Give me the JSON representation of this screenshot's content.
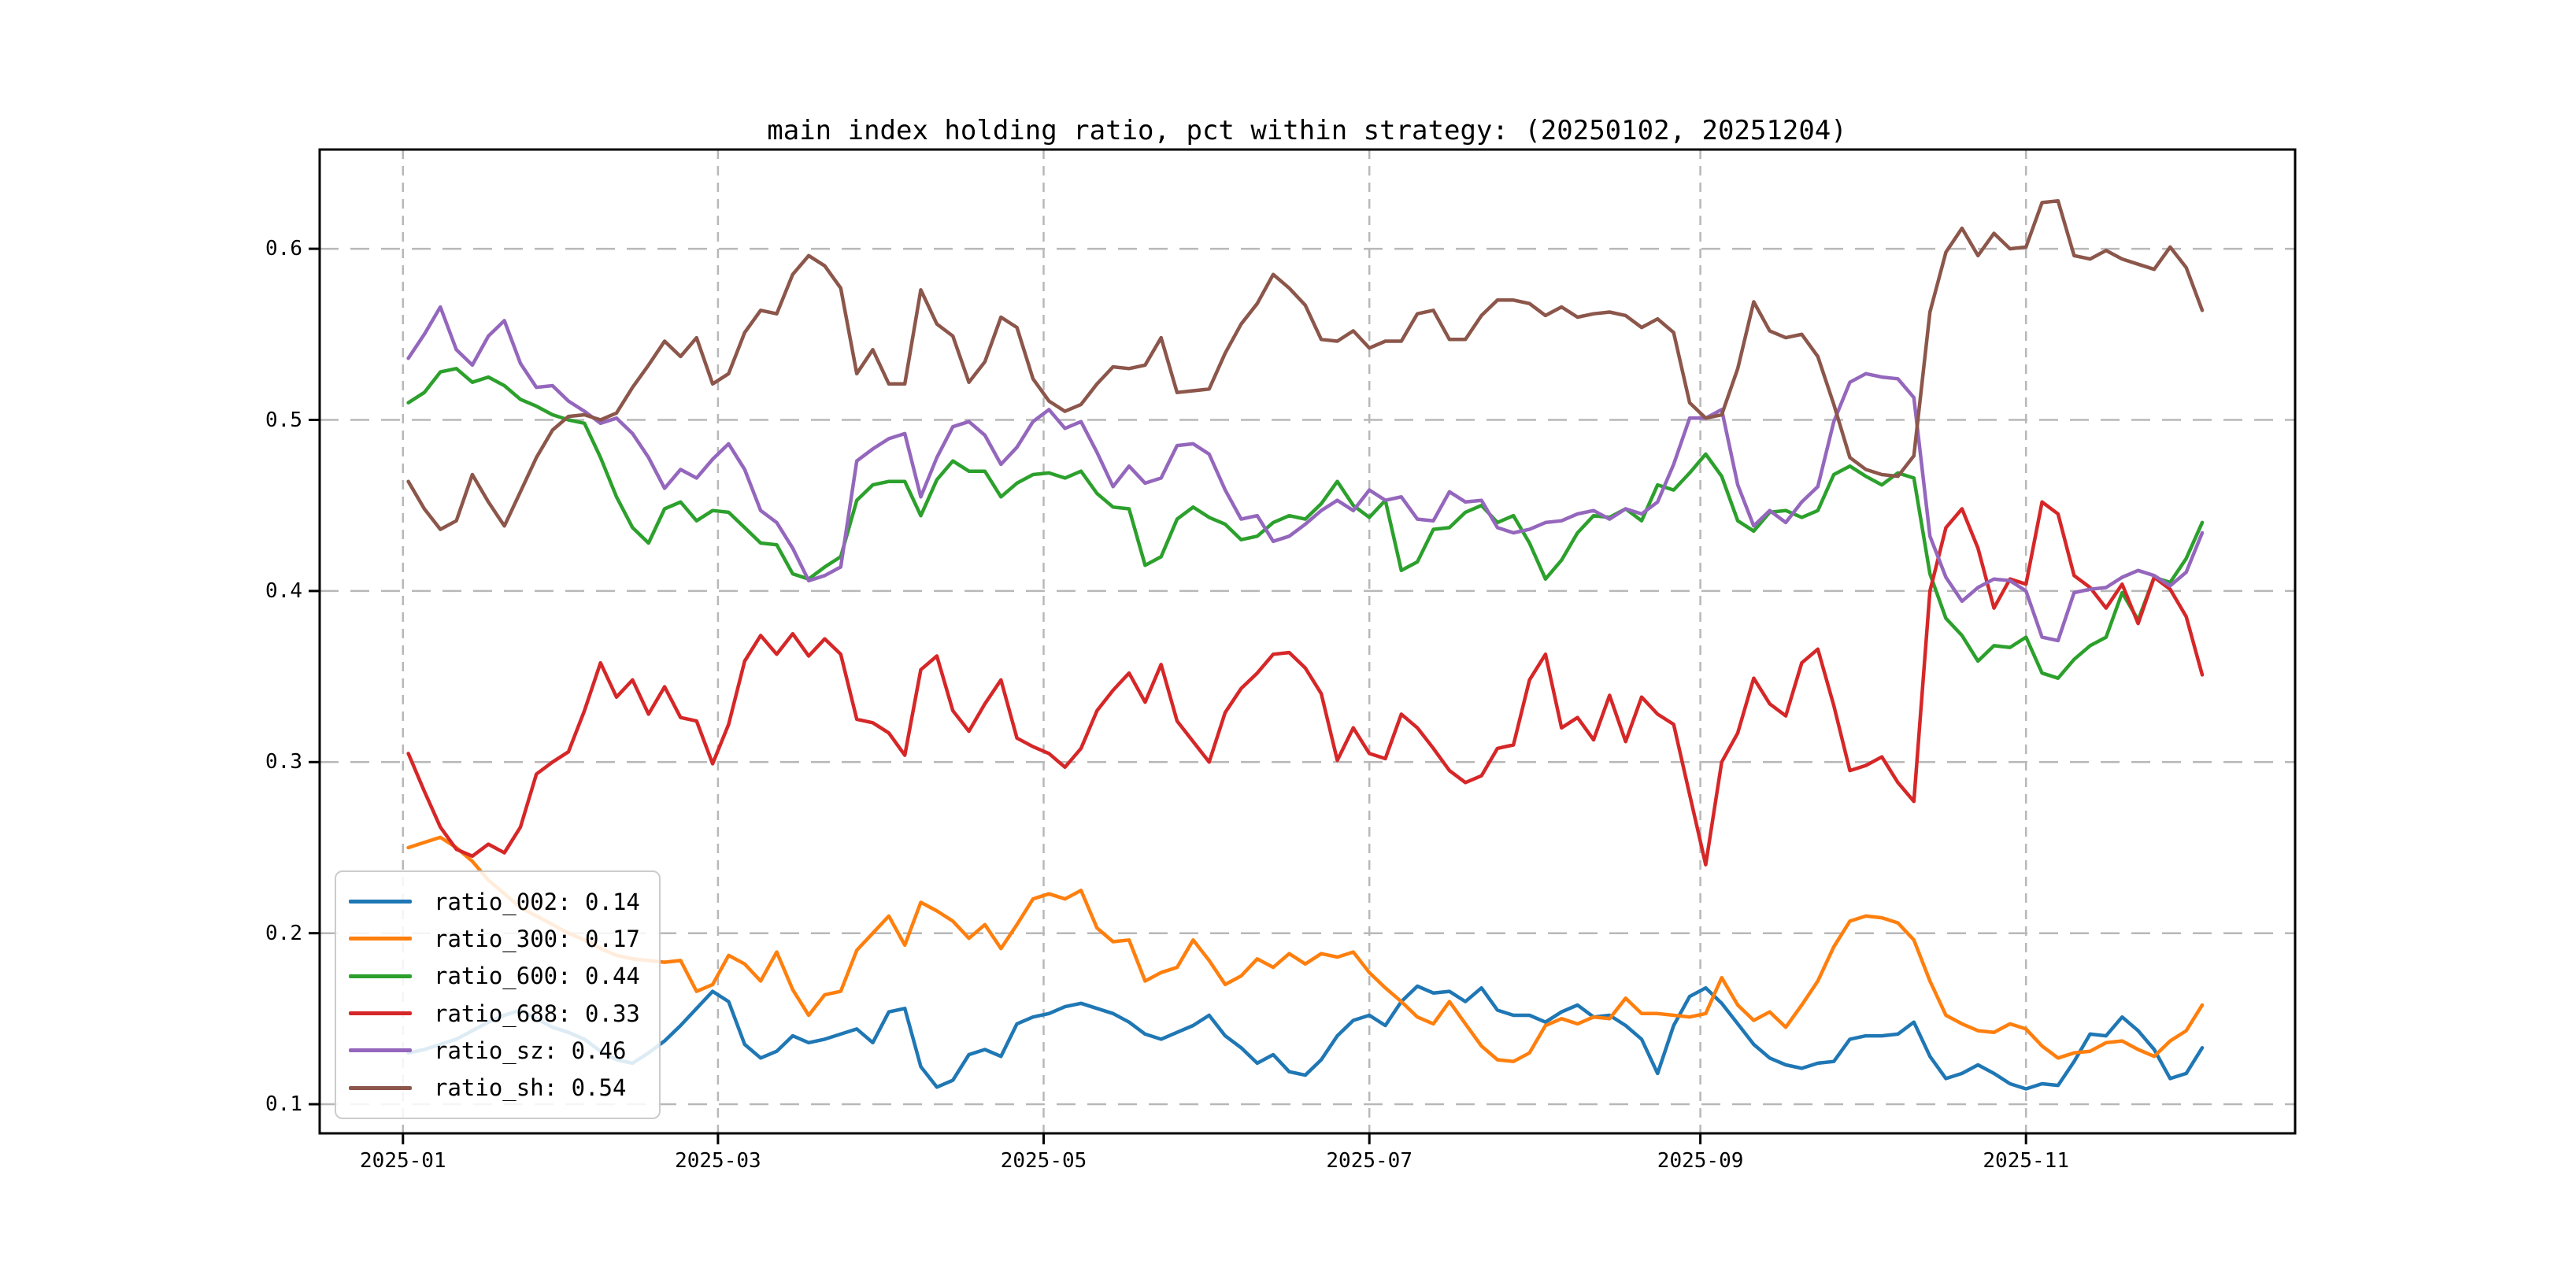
{
  "title": "main index holding ratio, pct within strategy: (20250102, 20251204)",
  "legend": {
    "entries": [
      {
        "label": "ratio_002: 0.14"
      },
      {
        "label": "ratio_300: 0.17"
      },
      {
        "label": "ratio_600: 0.44"
      },
      {
        "label": "ratio_688: 0.33"
      },
      {
        "label": "ratio_sz: 0.46"
      },
      {
        "label": "ratio_sh: 0.54"
      }
    ]
  },
  "axes": {
    "x_tick_labels": [
      "2025-01",
      "2025-03",
      "2025-05",
      "2025-07",
      "2025-09",
      "2025-11"
    ],
    "x_tick_days": [
      -1,
      58,
      119,
      180,
      242,
      303
    ],
    "y_tick_labels": [
      "0.1",
      "0.2",
      "0.3",
      "0.4",
      "0.5",
      "0.6"
    ],
    "y_tick_values": [
      0.1,
      0.2,
      0.3,
      0.4,
      0.5,
      0.6
    ],
    "ylim": [
      0.083,
      0.658
    ],
    "xlim_days": [
      -16.6,
      353.4
    ],
    "grid_color": "#b8b8b8",
    "spine_color": "#000000"
  },
  "chart_data": {
    "type": "line",
    "title": "main index holding ratio, pct within strategy: (20250102, 20251204)",
    "date_range": [
      "20250102",
      "20251204"
    ],
    "x_unit": "days since 2025-01-02",
    "grid": true,
    "legend_position": "lower left",
    "x_days": [
      0,
      3,
      6,
      9,
      12,
      15,
      18,
      21,
      24,
      27,
      30,
      33,
      36,
      39,
      42,
      45,
      48,
      51,
      54,
      57,
      60,
      63,
      66,
      69,
      72,
      75,
      78,
      81,
      84,
      87,
      90,
      93,
      96,
      99,
      102,
      105,
      108,
      111,
      114,
      117,
      120,
      123,
      126,
      129,
      132,
      135,
      138,
      141,
      144,
      147,
      150,
      153,
      156,
      159,
      162,
      165,
      168,
      171,
      174,
      177,
      180,
      183,
      186,
      189,
      192,
      195,
      198,
      201,
      204,
      207,
      210,
      213,
      216,
      219,
      222,
      225,
      228,
      231,
      234,
      237,
      240,
      243,
      246,
      249,
      252,
      255,
      258,
      261,
      264,
      267,
      270,
      273,
      276,
      279,
      282,
      285,
      288,
      291,
      294,
      297,
      300,
      303,
      306,
      309,
      312,
      315,
      318,
      321,
      324,
      327,
      330,
      333,
      336
    ],
    "series": [
      {
        "name": "ratio_002",
        "color": "#1f77b4",
        "last_label": "0.14",
        "values": [
          0.13,
          0.132,
          0.135,
          0.138,
          0.143,
          0.148,
          0.152,
          0.155,
          0.15,
          0.145,
          0.142,
          0.138,
          0.131,
          0.126,
          0.124,
          0.13,
          0.137,
          0.146,
          0.156,
          0.166,
          0.16,
          0.135,
          0.127,
          0.131,
          0.14,
          0.136,
          0.138,
          0.141,
          0.144,
          0.136,
          0.154,
          0.156,
          0.122,
          0.11,
          0.114,
          0.129,
          0.132,
          0.128,
          0.147,
          0.151,
          0.153,
          0.157,
          0.159,
          0.156,
          0.153,
          0.148,
          0.141,
          0.138,
          0.142,
          0.146,
          0.152,
          0.14,
          0.133,
          0.124,
          0.129,
          0.119,
          0.117,
          0.126,
          0.14,
          0.149,
          0.152,
          0.146,
          0.16,
          0.169,
          0.165,
          0.166,
          0.16,
          0.168,
          0.155,
          0.152,
          0.152,
          0.148,
          0.154,
          0.158,
          0.151,
          0.152,
          0.146,
          0.138,
          0.118,
          0.146,
          0.163,
          0.168,
          0.159,
          0.147,
          0.135,
          0.127,
          0.123,
          0.121,
          0.124,
          0.125,
          0.138,
          0.14,
          0.14,
          0.141,
          0.148,
          0.128,
          0.115,
          0.118,
          0.123,
          0.118,
          0.112,
          0.109,
          0.112,
          0.111,
          0.125,
          0.141,
          0.14,
          0.151,
          0.143,
          0.132,
          0.115,
          0.118,
          0.133
        ]
      },
      {
        "name": "ratio_300",
        "color": "#ff7f0e",
        "last_label": "0.17",
        "values": [
          0.25,
          0.253,
          0.256,
          0.25,
          0.242,
          0.231,
          0.223,
          0.215,
          0.21,
          0.205,
          0.2,
          0.196,
          0.191,
          0.187,
          0.185,
          0.184,
          0.183,
          0.184,
          0.166,
          0.17,
          0.187,
          0.182,
          0.172,
          0.189,
          0.167,
          0.152,
          0.164,
          0.166,
          0.19,
          0.2,
          0.21,
          0.193,
          0.218,
          0.213,
          0.207,
          0.197,
          0.205,
          0.191,
          0.205,
          0.22,
          0.223,
          0.22,
          0.225,
          0.203,
          0.195,
          0.196,
          0.172,
          0.177,
          0.18,
          0.196,
          0.184,
          0.17,
          0.175,
          0.185,
          0.18,
          0.188,
          0.182,
          0.188,
          0.186,
          0.189,
          0.177,
          0.168,
          0.16,
          0.151,
          0.147,
          0.16,
          0.147,
          0.134,
          0.126,
          0.125,
          0.13,
          0.146,
          0.15,
          0.147,
          0.151,
          0.15,
          0.162,
          0.153,
          0.153,
          0.152,
          0.151,
          0.153,
          0.174,
          0.158,
          0.149,
          0.154,
          0.145,
          0.158,
          0.172,
          0.192,
          0.207,
          0.21,
          0.209,
          0.206,
          0.196,
          0.172,
          0.152,
          0.147,
          0.143,
          0.142,
          0.147,
          0.144,
          0.134,
          0.127,
          0.13,
          0.131,
          0.136,
          0.137,
          0.132,
          0.128,
          0.137,
          0.143,
          0.158
        ]
      },
      {
        "name": "ratio_600",
        "color": "#2ca02c",
        "last_label": "0.44",
        "values": [
          0.51,
          0.516,
          0.528,
          0.53,
          0.522,
          0.525,
          0.52,
          0.512,
          0.508,
          0.503,
          0.5,
          0.498,
          0.478,
          0.455,
          0.437,
          0.428,
          0.448,
          0.452,
          0.441,
          0.447,
          0.446,
          0.437,
          0.428,
          0.427,
          0.41,
          0.407,
          0.414,
          0.42,
          0.453,
          0.462,
          0.464,
          0.464,
          0.444,
          0.465,
          0.476,
          0.47,
          0.47,
          0.455,
          0.463,
          0.468,
          0.469,
          0.466,
          0.47,
          0.457,
          0.449,
          0.448,
          0.415,
          0.42,
          0.442,
          0.449,
          0.443,
          0.439,
          0.43,
          0.432,
          0.44,
          0.444,
          0.442,
          0.451,
          0.464,
          0.45,
          0.443,
          0.453,
          0.412,
          0.417,
          0.436,
          0.437,
          0.446,
          0.45,
          0.44,
          0.444,
          0.428,
          0.407,
          0.418,
          0.434,
          0.444,
          0.443,
          0.448,
          0.441,
          0.462,
          0.459,
          0.469,
          0.48,
          0.467,
          0.441,
          0.435,
          0.446,
          0.447,
          0.443,
          0.447,
          0.468,
          0.473,
          0.467,
          0.462,
          0.469,
          0.466,
          0.41,
          0.384,
          0.374,
          0.359,
          0.368,
          0.367,
          0.373,
          0.352,
          0.349,
          0.36,
          0.368,
          0.373,
          0.399,
          0.383,
          0.408,
          0.405,
          0.419,
          0.44
        ]
      },
      {
        "name": "ratio_688",
        "color": "#d62728",
        "last_label": "0.33",
        "values": [
          0.305,
          0.283,
          0.262,
          0.249,
          0.245,
          0.252,
          0.247,
          0.262,
          0.293,
          0.3,
          0.306,
          0.33,
          0.358,
          0.338,
          0.348,
          0.328,
          0.344,
          0.326,
          0.324,
          0.299,
          0.322,
          0.359,
          0.374,
          0.363,
          0.375,
          0.362,
          0.372,
          0.363,
          0.325,
          0.323,
          0.317,
          0.304,
          0.354,
          0.362,
          0.33,
          0.318,
          0.334,
          0.348,
          0.314,
          0.309,
          0.305,
          0.297,
          0.308,
          0.33,
          0.342,
          0.352,
          0.335,
          0.357,
          0.324,
          0.312,
          0.3,
          0.329,
          0.343,
          0.352,
          0.363,
          0.364,
          0.355,
          0.34,
          0.301,
          0.32,
          0.305,
          0.302,
          0.328,
          0.32,
          0.308,
          0.295,
          0.288,
          0.292,
          0.308,
          0.31,
          0.348,
          0.363,
          0.32,
          0.326,
          0.313,
          0.339,
          0.312,
          0.338,
          0.328,
          0.322,
          0.281,
          0.24,
          0.3,
          0.317,
          0.349,
          0.334,
          0.327,
          0.358,
          0.366,
          0.333,
          0.295,
          0.298,
          0.303,
          0.288,
          0.277,
          0.4,
          0.437,
          0.448,
          0.425,
          0.39,
          0.407,
          0.404,
          0.452,
          0.445,
          0.409,
          0.402,
          0.39,
          0.404,
          0.381,
          0.408,
          0.401,
          0.385,
          0.351
        ]
      },
      {
        "name": "ratio_sz",
        "color": "#9467bd",
        "last_label": "0.46",
        "values": [
          0.536,
          0.55,
          0.566,
          0.541,
          0.532,
          0.549,
          0.558,
          0.533,
          0.519,
          0.52,
          0.511,
          0.505,
          0.498,
          0.501,
          0.492,
          0.478,
          0.46,
          0.471,
          0.466,
          0.477,
          0.486,
          0.471,
          0.447,
          0.44,
          0.425,
          0.406,
          0.409,
          0.414,
          0.476,
          0.483,
          0.489,
          0.492,
          0.455,
          0.478,
          0.496,
          0.499,
          0.491,
          0.474,
          0.484,
          0.499,
          0.506,
          0.495,
          0.499,
          0.481,
          0.461,
          0.473,
          0.463,
          0.466,
          0.485,
          0.486,
          0.48,
          0.459,
          0.442,
          0.444,
          0.429,
          0.432,
          0.439,
          0.447,
          0.453,
          0.447,
          0.459,
          0.453,
          0.455,
          0.442,
          0.441,
          0.458,
          0.452,
          0.453,
          0.437,
          0.434,
          0.436,
          0.44,
          0.441,
          0.445,
          0.447,
          0.442,
          0.448,
          0.445,
          0.452,
          0.474,
          0.501,
          0.501,
          0.506,
          0.462,
          0.438,
          0.447,
          0.44,
          0.452,
          0.461,
          0.499,
          0.522,
          0.527,
          0.525,
          0.524,
          0.513,
          0.432,
          0.408,
          0.394,
          0.402,
          0.407,
          0.406,
          0.4,
          0.373,
          0.371,
          0.399,
          0.401,
          0.402,
          0.408,
          0.412,
          0.409,
          0.403,
          0.411,
          0.434
        ]
      },
      {
        "name": "ratio_sh",
        "color": "#8c564b",
        "last_label": "0.54",
        "values": [
          0.464,
          0.448,
          0.436,
          0.441,
          0.468,
          0.452,
          0.438,
          0.458,
          0.478,
          0.494,
          0.502,
          0.503,
          0.5,
          0.504,
          0.519,
          0.532,
          0.546,
          0.537,
          0.548,
          0.521,
          0.527,
          0.551,
          0.564,
          0.562,
          0.585,
          0.596,
          0.59,
          0.577,
          0.527,
          0.541,
          0.521,
          0.521,
          0.576,
          0.556,
          0.549,
          0.522,
          0.534,
          0.56,
          0.554,
          0.524,
          0.511,
          0.505,
          0.509,
          0.521,
          0.531,
          0.53,
          0.532,
          0.548,
          0.516,
          0.517,
          0.518,
          0.539,
          0.556,
          0.568,
          0.585,
          0.577,
          0.567,
          0.547,
          0.546,
          0.552,
          0.542,
          0.546,
          0.546,
          0.562,
          0.564,
          0.547,
          0.547,
          0.561,
          0.57,
          0.57,
          0.568,
          0.561,
          0.566,
          0.56,
          0.562,
          0.563,
          0.561,
          0.554,
          0.559,
          0.551,
          0.51,
          0.501,
          0.503,
          0.53,
          0.569,
          0.552,
          0.548,
          0.55,
          0.537,
          0.509,
          0.478,
          0.471,
          0.468,
          0.467,
          0.479,
          0.563,
          0.598,
          0.612,
          0.596,
          0.609,
          0.6,
          0.601,
          0.627,
          0.628,
          0.596,
          0.594,
          0.599,
          0.594,
          0.591,
          0.588,
          0.601,
          0.589,
          0.564
        ]
      }
    ]
  }
}
